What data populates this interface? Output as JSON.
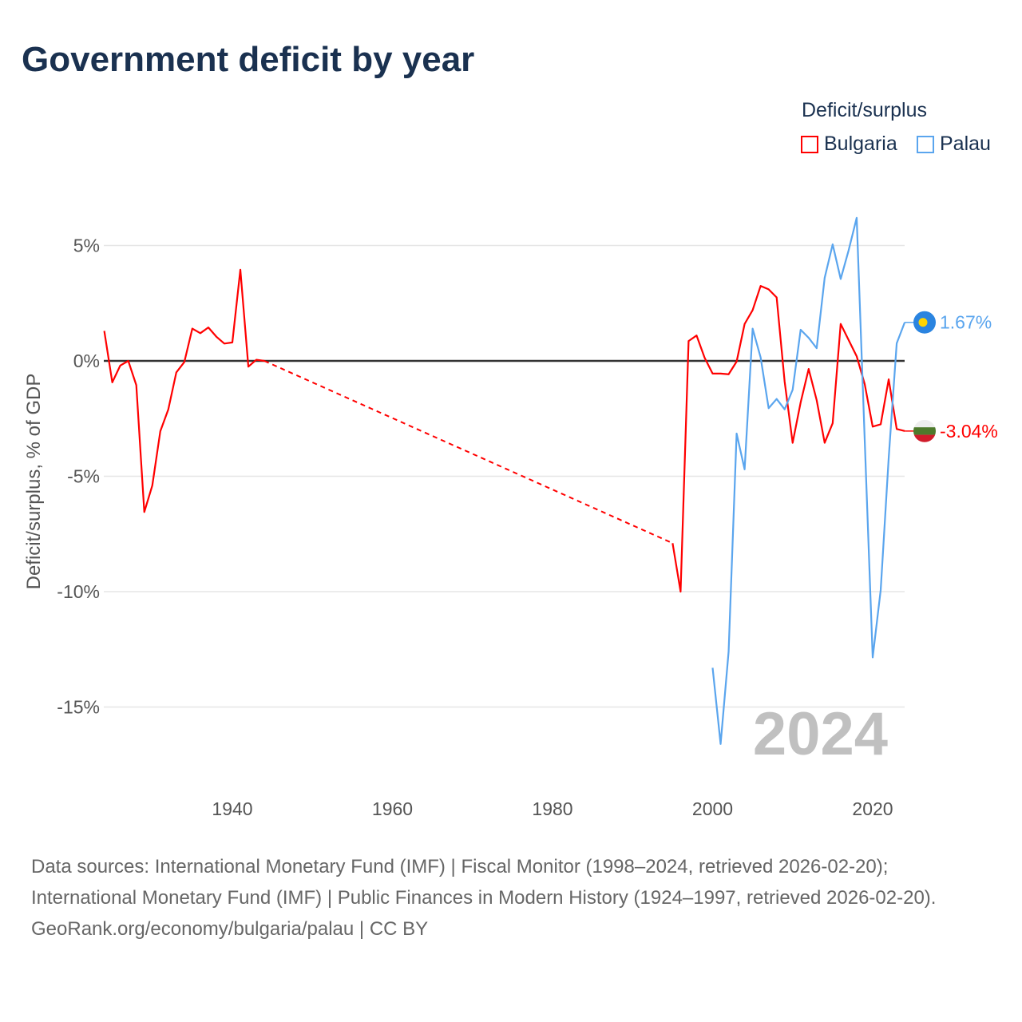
{
  "title": "Government deficit by year",
  "legend": {
    "title": "Deficit/surplus",
    "items": [
      {
        "name": "Bulgaria",
        "color": "#ff0000"
      },
      {
        "name": "Palau",
        "color": "#5aa5ee"
      }
    ]
  },
  "chart_data": {
    "type": "line",
    "title": "Government deficit by year",
    "xlabel": "",
    "ylabel": "Deficit/surplus, % of GDP",
    "xlim": [
      1924,
      2024
    ],
    "ylim": [
      -17.5,
      7.5
    ],
    "x_ticks": [
      1940,
      1960,
      1980,
      2000,
      2020
    ],
    "x_tick_labels": [
      "1940",
      "1960",
      "1980",
      "2000",
      "2020"
    ],
    "y_ticks": [
      5,
      0,
      -5,
      -10,
      -15
    ],
    "y_tick_labels": [
      "5%",
      "0%",
      "-5%",
      "-10%",
      "-15%"
    ],
    "grid": true,
    "legend_position": "top-right",
    "year_watermark": "2024",
    "series": [
      {
        "name": "Bulgaria",
        "color": "#ff0000",
        "end_label": "-3.04%",
        "x": [
          1924,
          1925,
          1926,
          1927,
          1928,
          1929,
          1930,
          1931,
          1932,
          1933,
          1934,
          1935,
          1936,
          1937,
          1938,
          1939,
          1940,
          1941,
          1942,
          1943,
          1944,
          1995,
          1996,
          1997,
          1998,
          1999,
          2000,
          2001,
          2002,
          2003,
          2004,
          2005,
          2006,
          2007,
          2008,
          2009,
          2010,
          2011,
          2012,
          2013,
          2014,
          2015,
          2016,
          2017,
          2018,
          2019,
          2020,
          2021,
          2022,
          2023,
          2024
        ],
        "values": [
          1.3,
          -0.93,
          -0.2,
          0,
          -1.05,
          -6.55,
          -5.4,
          -3.05,
          -2.1,
          -0.5,
          -0.05,
          1.4,
          1.2,
          1.45,
          1.05,
          0.75,
          0.8,
          3.95,
          -0.25,
          0.05,
          0,
          -7.9,
          -10.0,
          0.86,
          1.1,
          0.14,
          -0.55,
          -0.55,
          -0.58,
          -0.03,
          1.6,
          2.2,
          3.25,
          3.1,
          2.75,
          -0.9,
          -3.55,
          -1.8,
          -0.35,
          -1.7,
          -3.55,
          -2.7,
          1.6,
          0.9,
          0.2,
          -1.0,
          -2.85,
          -2.75,
          -0.8,
          -2.95,
          -3.04
        ]
      },
      {
        "name": "Palau",
        "color": "#5aa5ee",
        "end_label": "1.67%",
        "x": [
          2000,
          2001,
          2002,
          2003,
          2004,
          2005,
          2006,
          2007,
          2008,
          2009,
          2010,
          2011,
          2012,
          2013,
          2014,
          2015,
          2016,
          2017,
          2018,
          2019,
          2020,
          2021,
          2022,
          2023,
          2024
        ],
        "values": [
          -13.3,
          -16.6,
          -12.6,
          -3.15,
          -4.7,
          1.4,
          0.15,
          -2.05,
          -1.65,
          -2.1,
          -1.25,
          1.35,
          1.0,
          0.55,
          3.6,
          5.05,
          3.55,
          4.8,
          6.2,
          -3.4,
          -12.85,
          -9.93,
          -4.2,
          0.76,
          1.67
        ]
      }
    ]
  },
  "footer": {
    "sources": "Data sources: International Monetary Fund (IMF) | Fiscal Monitor (1998–2024, retrieved 2026-02-20); International Monetary Fund (IMF) | Public Finances in Modern History (1924–1997, retrieved 2026-02-20).",
    "credit": "GeoRank.org/economy/bulgaria/palau | CC BY"
  }
}
